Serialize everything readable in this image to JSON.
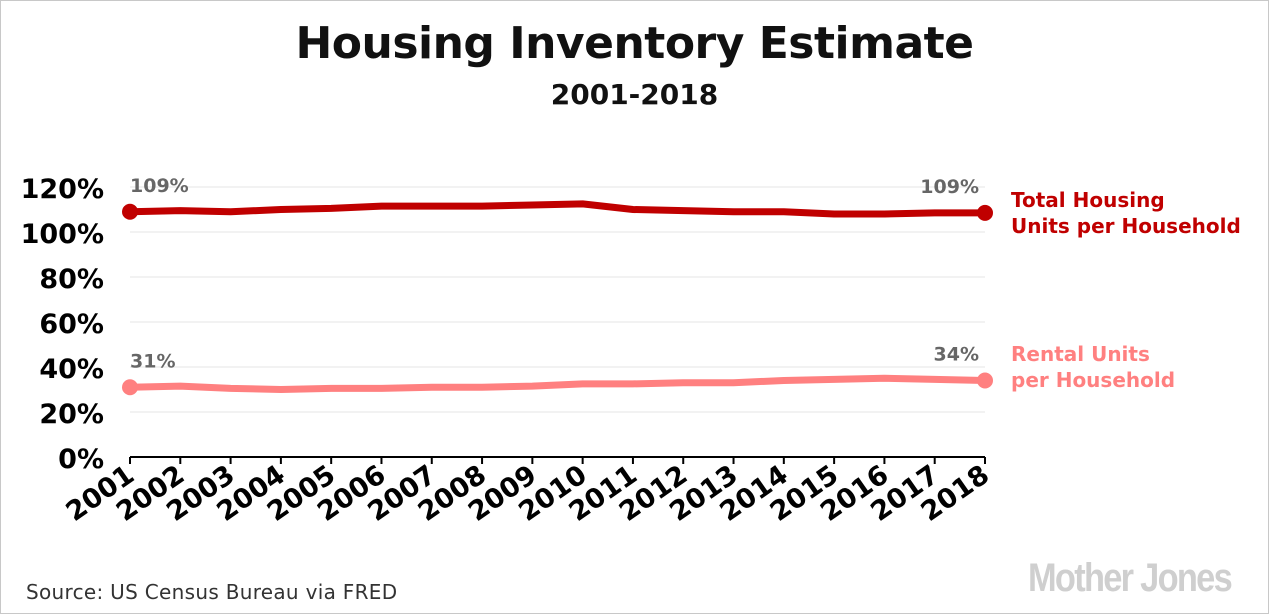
{
  "title": "Housing Inventory Estimate",
  "subtitle": "2001-2018",
  "source": "Source: US Census Bureau via FRED",
  "logo": "Mother Jones",
  "colors": {
    "total": "#c00000",
    "rental": "#ff8080",
    "grid": "#e6e6e6",
    "axis": "#000000",
    "label": "#666666"
  },
  "chart_data": {
    "type": "line",
    "categories": [
      "2001",
      "2002",
      "2003",
      "2004",
      "2005",
      "2006",
      "2007",
      "2008",
      "2009",
      "2010",
      "2011",
      "2012",
      "2013",
      "2014",
      "2015",
      "2016",
      "2017",
      "2018"
    ],
    "yticks": [
      "0%",
      "20%",
      "40%",
      "60%",
      "80%",
      "100%",
      "120%"
    ],
    "ylim": [
      0,
      120
    ],
    "grid": true,
    "legend_placement": "right",
    "series": [
      {
        "name": "Total Housing Units per Household",
        "label_lines": [
          "Total Housing",
          "Units per Household"
        ],
        "values": [
          109,
          109.5,
          109,
          110,
          110.5,
          111.5,
          111.5,
          111.5,
          112,
          112.5,
          110,
          109.5,
          109,
          109,
          108,
          108,
          108.5,
          108.5
        ],
        "start_label": "109%",
        "end_label": "109%"
      },
      {
        "name": "Rental Units per Household",
        "label_lines": [
          "Rental Units",
          "per Household"
        ],
        "values": [
          31,
          31.5,
          30.5,
          30,
          30.5,
          30.5,
          31,
          31,
          31.5,
          32.5,
          32.5,
          33,
          33,
          34,
          34.5,
          35,
          34.5,
          34
        ],
        "start_label": "31%",
        "end_label": "34%"
      }
    ]
  }
}
